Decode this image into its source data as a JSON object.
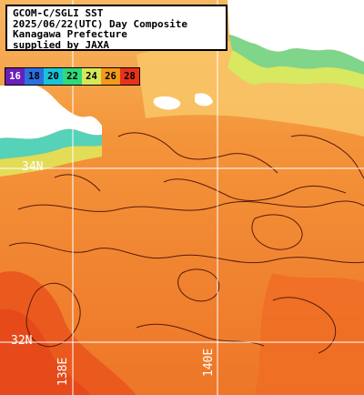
{
  "title_lines": [
    "GCOM-C/SGLI SST",
    "2025/06/22(UTC) Day Composite",
    "Kanagawa Prefecture",
    "supplied by JAXA"
  ],
  "color_scale": {
    "labels": [
      "16",
      "18",
      "20",
      "22",
      "24",
      "26",
      "28"
    ],
    "colors": [
      "#6a1fb8",
      "#2c6fe0",
      "#19c4d6",
      "#30d97a",
      "#d6e85a",
      "#f39a1c",
      "#e8321a"
    ]
  },
  "grid_labels": {
    "lat_34": "34N",
    "lat_32": "32N",
    "lon_138": "138E",
    "lon_140": "140E"
  },
  "colors": {
    "land": "#ffffff",
    "sea_main": "#f2872d",
    "sea_warm": "#e9541c",
    "sea_cool": "#f7b65a",
    "contour": "#5a1a0a"
  }
}
